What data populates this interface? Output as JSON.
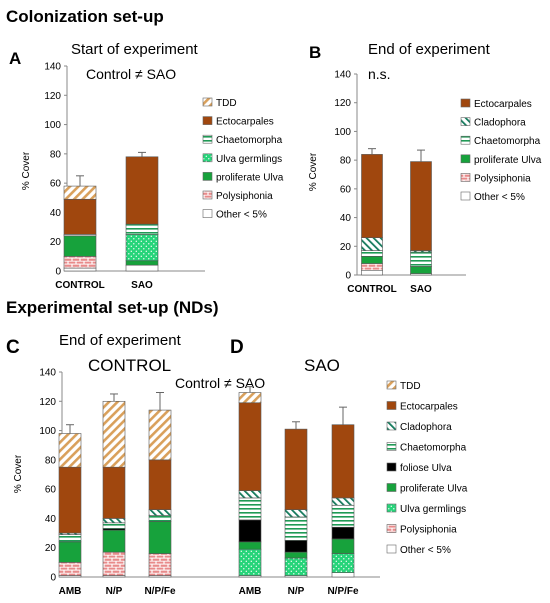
{
  "headings": {
    "colonization": "Colonization set-up",
    "experimental": "Experimental set-up (NDs)"
  },
  "colors": {
    "TDD": "#ffffff",
    "Ectocarpales": "#a0470e",
    "Cladophora": "#ffffff",
    "Chaetomorpha": "#ffffff",
    "foliose Ulva": "#000000",
    "proliferate Ulva": "#17a23c",
    "Ulva germlings": "#28d87a",
    "Polysiphonia": "#ffffff",
    "Other < 5%": "#ffffff"
  },
  "chart_data": [
    {
      "type": "bar",
      "stacked": true,
      "panel_letter": "A",
      "title": "Start of experiment",
      "annotation": "Control ≠ SAO",
      "xlabel": "",
      "ylabel": "% Cover",
      "ylim": [
        0,
        140
      ],
      "yticks": [
        "0",
        "20",
        "40",
        "60",
        "80",
        "100",
        "120",
        "140"
      ],
      "categories": [
        "CONTROL",
        "SAO"
      ],
      "error_tops": [
        65,
        81
      ],
      "series": [
        {
          "name": "Other < 5%",
          "values": [
            2,
            4
          ]
        },
        {
          "name": "Polysiphonia",
          "values": [
            8,
            0
          ]
        },
        {
          "name": "proliferate Ulva",
          "values": [
            14,
            3
          ]
        },
        {
          "name": "Ulva germlings",
          "values": [
            0,
            18
          ]
        },
        {
          "name": "Chaetomorpha",
          "values": [
            1,
            7
          ]
        },
        {
          "name": "Ectocarpales",
          "values": [
            24,
            46
          ]
        },
        {
          "name": "TDD",
          "values": [
            9,
            0
          ]
        }
      ],
      "legend": [
        "TDD",
        "Ectocarpales",
        "Chaetomorpha",
        "Ulva germlings",
        "proliferate Ulva",
        "Polysiphonia",
        "Other < 5%"
      ],
      "legend_position": "right"
    },
    {
      "type": "bar",
      "stacked": true,
      "panel_letter": "B",
      "title": "End of experiment",
      "annotation": "n.s.",
      "xlabel": "",
      "ylabel": "% Cover",
      "ylim": [
        0,
        140
      ],
      "yticks": [
        "0",
        "20",
        "40",
        "60",
        "80",
        "100",
        "120",
        "140"
      ],
      "categories": [
        "CONTROL",
        "SAO"
      ],
      "error_tops": [
        88,
        87
      ],
      "series": [
        {
          "name": "Other < 5%",
          "values": [
            3,
            1
          ]
        },
        {
          "name": "Polysiphonia",
          "values": [
            5,
            0
          ]
        },
        {
          "name": "proliferate Ulva",
          "values": [
            5,
            5
          ]
        },
        {
          "name": "Chaetomorpha",
          "values": [
            4,
            10
          ]
        },
        {
          "name": "Cladophora",
          "values": [
            9,
            1
          ]
        },
        {
          "name": "Ectocarpales",
          "values": [
            58,
            62
          ]
        }
      ],
      "legend": [
        "Ectocarpales",
        "Cladophora",
        "Chaetomorpha",
        "proliferate Ulva",
        "Polysiphonia",
        "Other < 5%"
      ],
      "legend_position": "right"
    },
    {
      "type": "bar",
      "stacked": true,
      "panel_letter": "C",
      "title": "End of experiment",
      "subtitle": "CONTROL",
      "xlabel": "",
      "ylabel": "% Cover",
      "ylim": [
        0,
        140
      ],
      "yticks": [
        "0",
        "20",
        "40",
        "60",
        "80",
        "100",
        "120",
        "140"
      ],
      "categories": [
        "AMB",
        "N/P",
        "N/P/Fe"
      ],
      "error_tops": [
        104,
        125,
        126
      ],
      "series": [
        {
          "name": "Other < 5%",
          "values": [
            1,
            1,
            1
          ]
        },
        {
          "name": "Polysiphonia",
          "values": [
            9,
            16,
            15
          ]
        },
        {
          "name": "Ulva germlings",
          "values": [
            0,
            0,
            0
          ]
        },
        {
          "name": "proliferate Ulva",
          "values": [
            14,
            15,
            22
          ]
        },
        {
          "name": "foliose Ulva",
          "values": [
            0,
            1,
            0
          ]
        },
        {
          "name": "Chaetomorpha",
          "values": [
            5,
            4,
            4
          ]
        },
        {
          "name": "Cladophora",
          "values": [
            1,
            3,
            4
          ]
        },
        {
          "name": "Ectocarpales",
          "values": [
            45,
            35,
            34
          ]
        },
        {
          "name": "TDD",
          "values": [
            23,
            45,
            34
          ]
        }
      ]
    },
    {
      "type": "bar",
      "stacked": true,
      "panel_letter": "D",
      "title": "SAO",
      "annotation": "Control ≠ SAO",
      "xlabel": "",
      "ylabel": "",
      "ylim": [
        0,
        140
      ],
      "categories": [
        "AMB",
        "N/P",
        "N/P/Fe"
      ],
      "error_tops": [
        130,
        106,
        116
      ],
      "series": [
        {
          "name": "Other < 5%",
          "values": [
            1,
            1,
            3
          ]
        },
        {
          "name": "Polysiphonia",
          "values": [
            0,
            0,
            0
          ]
        },
        {
          "name": "Ulva germlings",
          "values": [
            18,
            12,
            13
          ]
        },
        {
          "name": "proliferate Ulva",
          "values": [
            5,
            4,
            10
          ]
        },
        {
          "name": "foliose Ulva",
          "values": [
            15,
            8,
            8
          ]
        },
        {
          "name": "Chaetomorpha",
          "values": [
            15,
            16,
            15
          ]
        },
        {
          "name": "Cladophora",
          "values": [
            5,
            5,
            5
          ]
        },
        {
          "name": "Ectocarpales",
          "values": [
            60,
            55,
            50
          ]
        },
        {
          "name": "TDD",
          "values": [
            7,
            0,
            0
          ]
        }
      ],
      "legend": [
        "TDD",
        "Ectocarpales",
        "Cladophora",
        "Chaetomorpha",
        "foliose Ulva",
        "proliferate Ulva",
        "Ulva germlings",
        "Polysiphonia",
        "Other < 5%"
      ],
      "legend_position": "right"
    }
  ]
}
